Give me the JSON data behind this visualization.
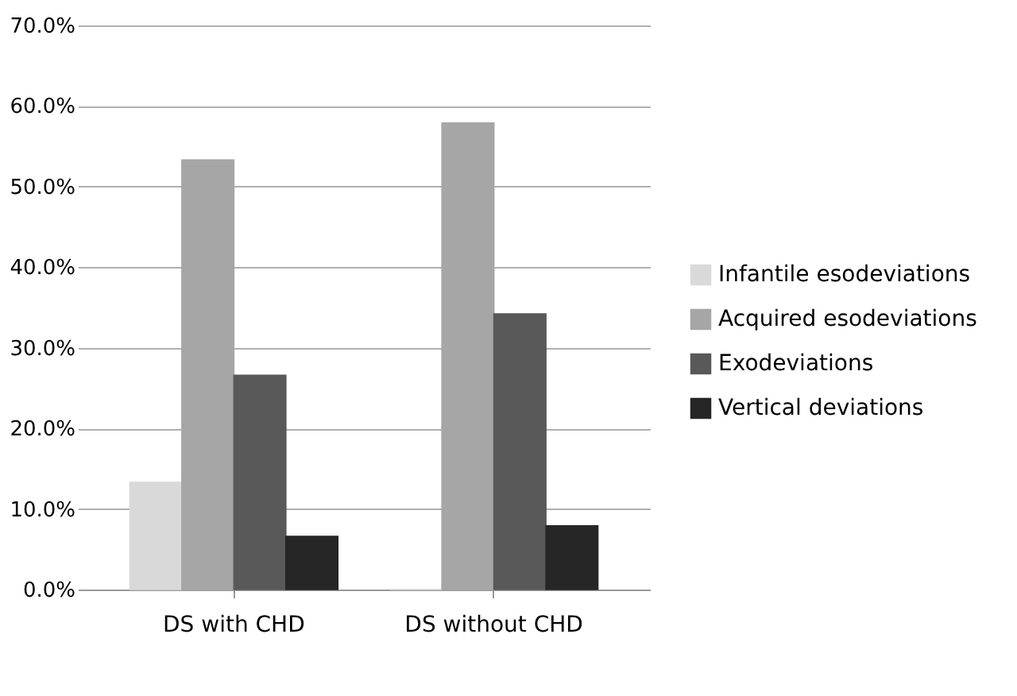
{
  "chart_data": {
    "type": "bar",
    "categories": [
      "DS with CHD",
      "DS without CHD"
    ],
    "series": [
      {
        "name": "Infantile esodeviations",
        "color": "#d9d9d9",
        "values": [
          13.3,
          0
        ]
      },
      {
        "name": "Acquired esodeviations",
        "color": "#a6a6a6",
        "values": [
          53.3,
          57.9
        ]
      },
      {
        "name": "Exodeviations",
        "color": "#595959",
        "values": [
          26.6,
          34.2
        ]
      },
      {
        "name": "Vertical deviations",
        "color": "#262626",
        "values": [
          6.6,
          7.9
        ]
      }
    ],
    "ylim": [
      0,
      70
    ],
    "yticks": [
      {
        "value": 0,
        "label": "0.0%"
      },
      {
        "value": 10,
        "label": "10.0%"
      },
      {
        "value": 20,
        "label": "20.0%"
      },
      {
        "value": 30,
        "label": "30.0%"
      },
      {
        "value": 40,
        "label": "40.0%"
      },
      {
        "value": 50,
        "label": "50.0%"
      },
      {
        "value": 60,
        "label": "60.0%"
      },
      {
        "value": 70,
        "label": "70.0%"
      }
    ],
    "grid": "y",
    "legend": "right"
  }
}
